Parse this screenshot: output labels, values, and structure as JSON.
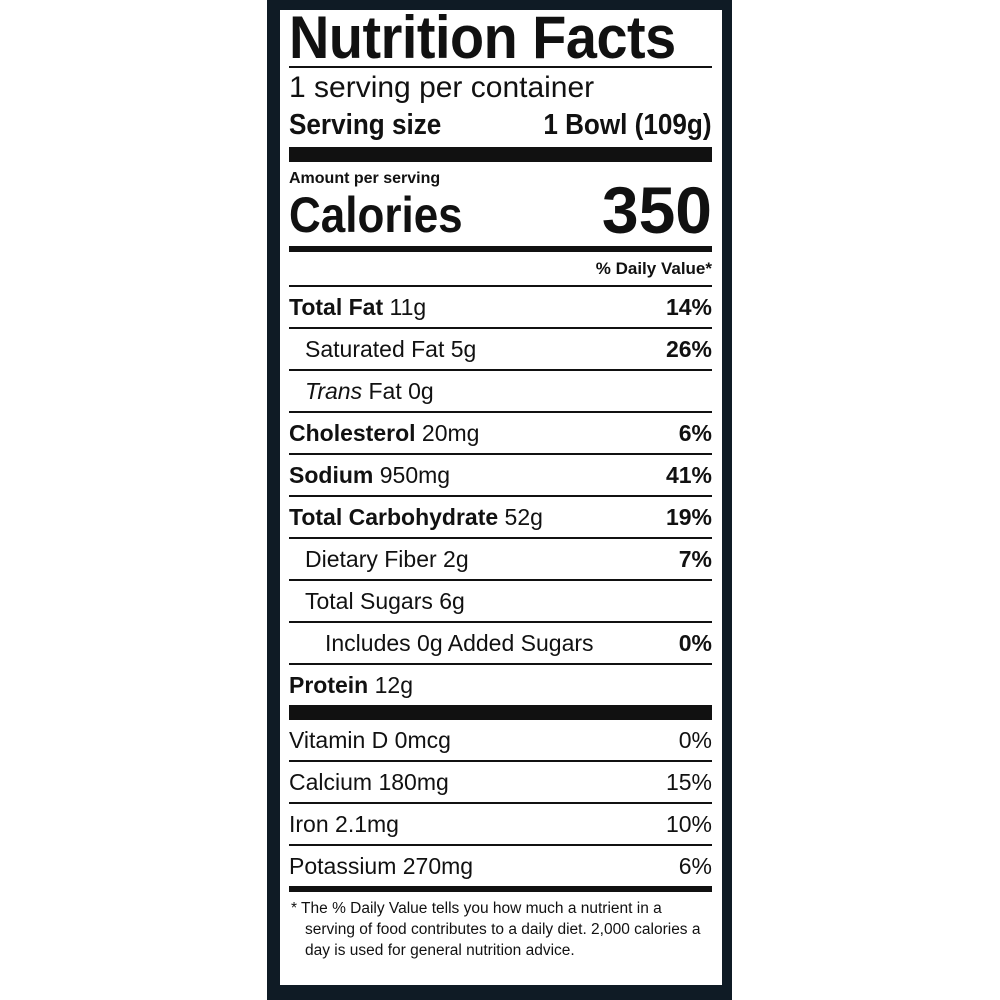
{
  "title": "Nutrition Facts",
  "servings_per_container": "1 serving per container",
  "serving_size": {
    "label": "Serving size",
    "value": "1 Bowl (109g)"
  },
  "amount_per_serving": "Amount per serving",
  "calories": {
    "label": "Calories",
    "value": "350"
  },
  "daily_value_header": "% Daily Value*",
  "nutrients": [
    {
      "name": "Total Fat",
      "amount": "11g",
      "dv": "14%"
    },
    {
      "name": "Saturated Fat",
      "amount": "5g",
      "dv": "26%"
    },
    {
      "name_italic": "Trans",
      "name": "Fat",
      "amount": "0g",
      "dv": ""
    },
    {
      "name": "Cholesterol",
      "amount": "20mg",
      "dv": "6%"
    },
    {
      "name": "Sodium",
      "amount": "950mg",
      "dv": "41%"
    },
    {
      "name": "Total Carbohydrate",
      "amount": "52g",
      "dv": "19%"
    },
    {
      "name": "Dietary Fiber",
      "amount": "2g",
      "dv": "7%"
    },
    {
      "name": "Total Sugars",
      "amount": "6g",
      "dv": ""
    },
    {
      "name": "Includes 0g Added Sugars",
      "amount": "",
      "dv": "0%"
    },
    {
      "name": "Protein",
      "amount": "12g",
      "dv": ""
    }
  ],
  "vitamins": [
    {
      "name": "Vitamin D 0mcg",
      "dv": "0%"
    },
    {
      "name": "Calcium 180mg",
      "dv": "15%"
    },
    {
      "name": "Iron 2.1mg",
      "dv": "10%"
    },
    {
      "name": "Potassium 270mg",
      "dv": "6%"
    }
  ],
  "footnote": "* The % Daily Value tells you how much a nutrient in a serving of food contributes to a daily diet. 2,000 calories a day is used for general nutrition advice.",
  "colors": {
    "frame": "#0f1b25",
    "ink": "#111111"
  }
}
